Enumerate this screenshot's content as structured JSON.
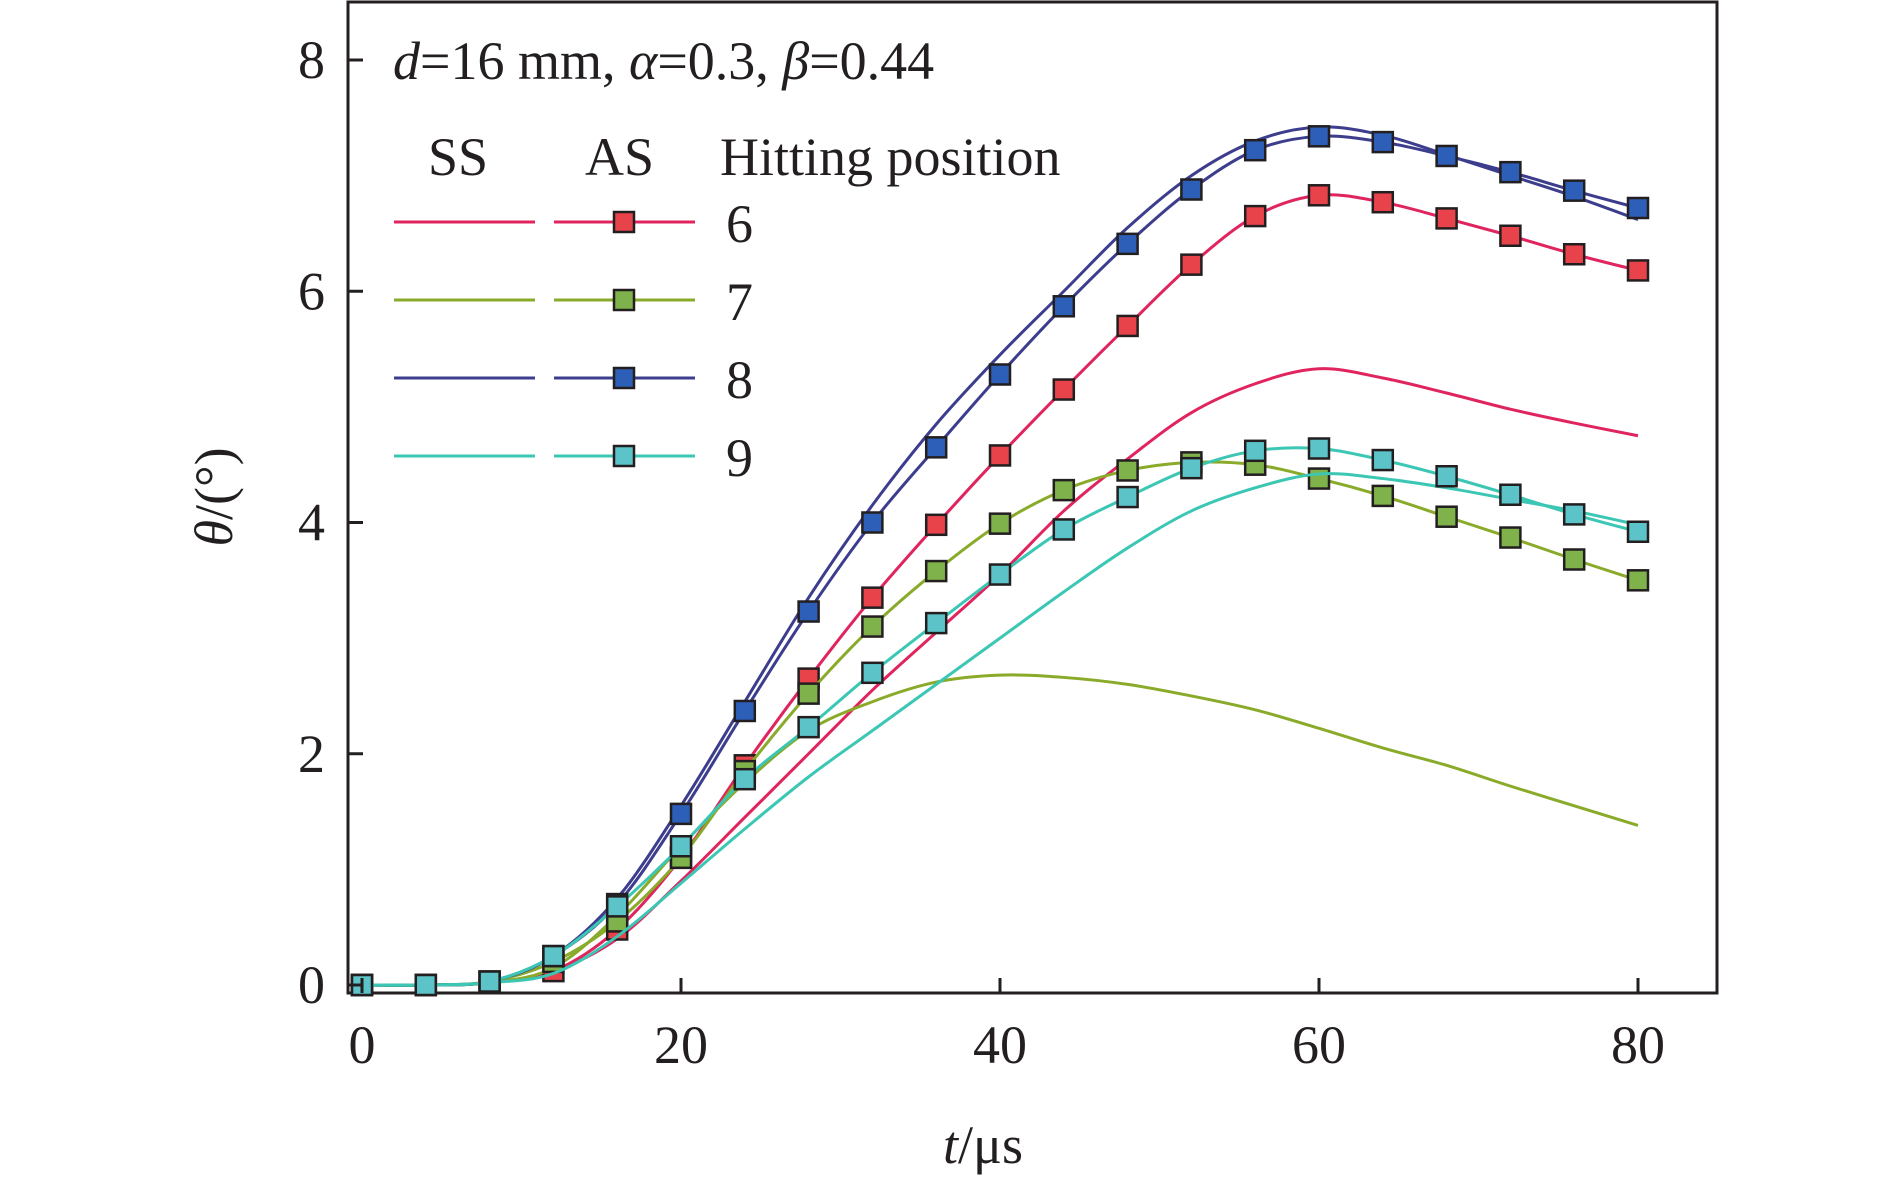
{
  "chart_data": {
    "type": "line",
    "annotation": {
      "prefix": "d",
      "rest": "=16 mm, ",
      "a_sym": "α",
      "a_rest": "=0.3, ",
      "b_sym": "β",
      "b_rest": "=0.44"
    },
    "xlabel": {
      "var": "t",
      "unit": "/μs"
    },
    "ylabel": {
      "var": "θ",
      "unit": "/(°)"
    },
    "xlim": [
      0,
      80
    ],
    "ylim": [
      0,
      8
    ],
    "xticks": [
      0,
      20,
      40,
      60,
      80
    ],
    "yticks": [
      0,
      2,
      4,
      6,
      8
    ],
    "grid": false,
    "legend": {
      "placement": "top-left",
      "header_ss": "SS",
      "header_as": "AS",
      "header_pos": "Hitting position"
    },
    "series": [
      {
        "name": "6",
        "color": "#e0245e",
        "marker_color": "#e8424a",
        "ss": {
          "x": [
            0,
            4,
            8,
            12,
            16,
            20,
            24,
            28,
            32,
            36,
            40,
            44,
            48,
            52,
            56,
            60,
            64,
            68,
            72,
            76,
            80
          ],
          "y": [
            0,
            0,
            0.02,
            0.12,
            0.4,
            0.9,
            1.45,
            2.0,
            2.55,
            3.05,
            3.55,
            4.1,
            4.55,
            4.95,
            5.2,
            5.33,
            5.25,
            5.12,
            4.98,
            4.86,
            4.75
          ]
        },
        "as": {
          "x": [
            0,
            4,
            8,
            12,
            16,
            20,
            24,
            28,
            32,
            36,
            40,
            44,
            48,
            52,
            56,
            60,
            64,
            68,
            72,
            76,
            80
          ],
          "y": [
            0,
            0,
            0.02,
            0.12,
            0.48,
            1.1,
            1.9,
            2.65,
            3.35,
            3.98,
            4.58,
            5.15,
            5.7,
            6.23,
            6.65,
            6.83,
            6.77,
            6.63,
            6.48,
            6.32,
            6.18
          ]
        }
      },
      {
        "name": "7",
        "color": "#8aaa2a",
        "marker_color": "#7fb24a",
        "ss": {
          "x": [
            0,
            4,
            8,
            12,
            16,
            20,
            24,
            28,
            32,
            36,
            40,
            44,
            48,
            52,
            56,
            60,
            64,
            68,
            72,
            76,
            80
          ],
          "y": [
            0,
            0,
            0.02,
            0.15,
            0.6,
            1.2,
            1.75,
            2.2,
            2.45,
            2.62,
            2.68,
            2.66,
            2.6,
            2.5,
            2.38,
            2.22,
            2.05,
            1.9,
            1.72,
            1.55,
            1.38
          ]
        },
        "as": {
          "x": [
            0,
            4,
            8,
            12,
            16,
            20,
            24,
            28,
            32,
            36,
            40,
            44,
            48,
            52,
            56,
            60,
            64,
            68,
            72,
            76,
            80
          ],
          "y": [
            0,
            0,
            0.03,
            0.2,
            0.55,
            1.1,
            1.85,
            2.52,
            3.1,
            3.58,
            3.99,
            4.28,
            4.45,
            4.52,
            4.5,
            4.38,
            4.23,
            4.05,
            3.87,
            3.68,
            3.5
          ]
        }
      },
      {
        "name": "8",
        "color": "#3d3d8e",
        "marker_color": "#2e5fb8",
        "ss": {
          "x": [
            0,
            4,
            8,
            12,
            16,
            20,
            24,
            28,
            32,
            36,
            40,
            44,
            48,
            52,
            56,
            60,
            64,
            68,
            72,
            76,
            80
          ],
          "y": [
            0,
            0,
            0.03,
            0.25,
            0.75,
            1.55,
            2.45,
            3.35,
            4.15,
            4.85,
            5.45,
            6.0,
            6.55,
            7.0,
            7.3,
            7.42,
            7.35,
            7.18,
            7.0,
            6.82,
            6.62
          ]
        },
        "as": {
          "x": [
            0,
            4,
            8,
            12,
            16,
            20,
            24,
            28,
            32,
            36,
            40,
            44,
            48,
            52,
            56,
            60,
            64,
            68,
            72,
            76,
            80
          ],
          "y": [
            0,
            0,
            0.03,
            0.25,
            0.7,
            1.48,
            2.37,
            3.23,
            4.0,
            4.65,
            5.28,
            5.87,
            6.41,
            6.88,
            7.22,
            7.34,
            7.29,
            7.17,
            7.03,
            6.87,
            6.72
          ]
        }
      },
      {
        "name": "9",
        "color": "#3cc6b4",
        "marker_color": "#5cc4c8",
        "ss": {
          "x": [
            0,
            4,
            8,
            12,
            16,
            20,
            24,
            28,
            32,
            36,
            40,
            44,
            48,
            52,
            56,
            60,
            64,
            68,
            72,
            76,
            80
          ],
          "y": [
            0,
            0,
            0.02,
            0.1,
            0.42,
            0.88,
            1.35,
            1.8,
            2.2,
            2.6,
            3.0,
            3.4,
            3.78,
            4.1,
            4.3,
            4.42,
            4.38,
            4.3,
            4.2,
            4.1,
            3.98
          ]
        },
        "as": {
          "x": [
            0,
            4,
            8,
            12,
            16,
            20,
            24,
            28,
            32,
            36,
            40,
            44,
            48,
            52,
            56,
            60,
            64,
            68,
            72,
            76,
            80
          ],
          "y": [
            0,
            0,
            0.03,
            0.25,
            0.68,
            1.2,
            1.78,
            2.23,
            2.7,
            3.13,
            3.55,
            3.94,
            4.22,
            4.47,
            4.62,
            4.64,
            4.54,
            4.4,
            4.24,
            4.07,
            3.92
          ]
        }
      }
    ]
  }
}
